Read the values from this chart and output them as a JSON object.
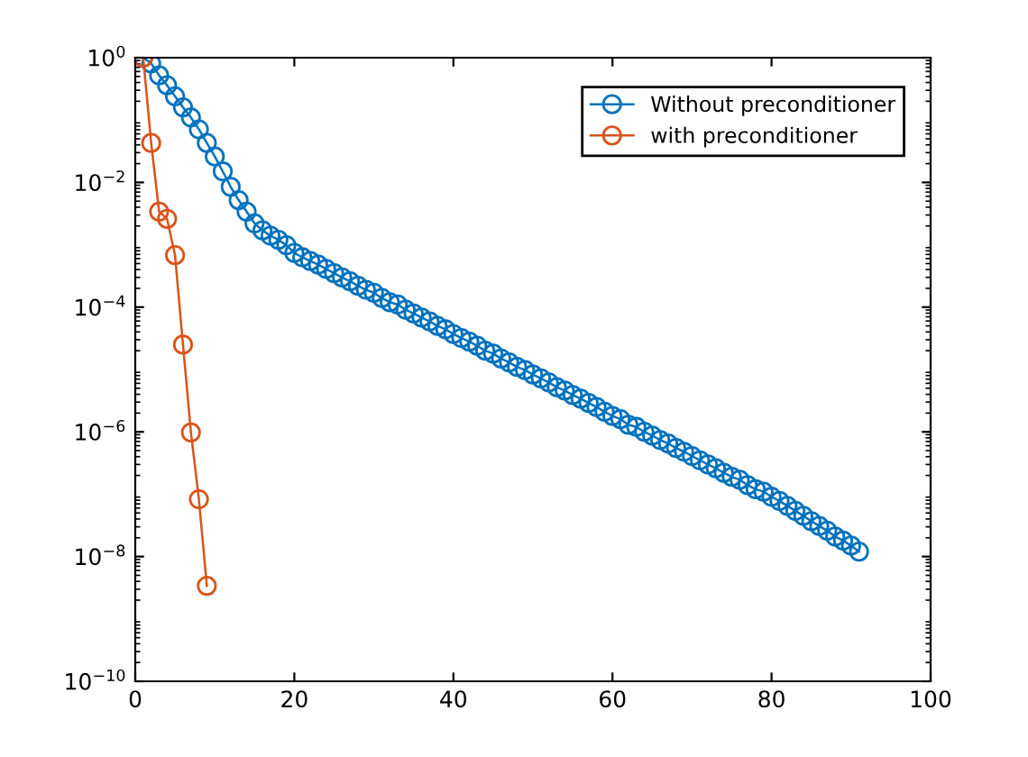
{
  "chart_data": {
    "type": "line",
    "log": "y",
    "marker": "circle",
    "legend": "top right",
    "grid": false,
    "xlim": [
      0,
      100
    ],
    "xticks": [
      0,
      20,
      40,
      60,
      80,
      100
    ],
    "ylim": [
      1e-10,
      1
    ],
    "yticks": [
      {
        "value": 1e-10,
        "label": "10$^{−10}$"
      },
      {
        "value": 1e-08,
        "label": "10$^{−8}$"
      },
      {
        "value": 1e-06,
        "label": "10$^{−6}$"
      },
      {
        "value": 0.0001,
        "label": "10$^{−4}$"
      },
      {
        "value": 0.01,
        "label": "10$^{−2}$"
      },
      {
        "value": 1,
        "label": "10$^{0}$"
      }
    ],
    "series": [
      {
        "name": "Without preconditioner",
        "color": "#0072bd",
        "x": [
          1,
          2,
          3,
          4,
          5,
          6,
          7,
          8,
          9,
          10,
          11,
          12,
          13,
          14,
          15,
          16,
          17,
          18,
          19,
          20,
          21,
          22,
          23,
          24,
          25,
          26,
          27,
          28,
          29,
          30,
          31,
          32,
          33,
          34,
          35,
          36,
          37,
          38,
          39,
          40,
          41,
          42,
          43,
          44,
          45,
          46,
          47,
          48,
          49,
          50,
          51,
          52,
          53,
          54,
          55,
          56,
          57,
          58,
          59,
          60,
          61,
          62,
          63,
          64,
          65,
          66,
          67,
          68,
          69,
          70,
          71,
          72,
          73,
          74,
          75,
          76,
          77,
          78,
          79,
          80,
          81,
          82,
          83,
          84,
          85,
          86,
          87,
          88,
          89,
          90,
          91
        ],
        "values": [
          1,
          0.81,
          0.52,
          0.36,
          0.24,
          0.16,
          0.11,
          0.071,
          0.043,
          0.026,
          0.015,
          0.0085,
          0.0052,
          0.0034,
          0.0022,
          0.0017,
          0.0014,
          0.0012,
          0.00098,
          0.00074,
          0.00063,
          0.00055,
          0.00048,
          0.00041,
          0.00035,
          0.0003,
          0.00026,
          0.00022,
          0.00019,
          0.00017,
          0.00014,
          0.00012,
          0.00011,
          9.1e-05,
          7.9e-05,
          6.8e-05,
          5.9e-05,
          5e-05,
          4.4e-05,
          3.7e-05,
          3.2e-05,
          2.8e-05,
          2.4e-05,
          2e-05,
          1.8e-05,
          1.5e-05,
          1.3e-05,
          1.1e-05,
          9.8e-06,
          8.3e-06,
          7.2e-06,
          6.2e-06,
          5.2e-06,
          4.6e-06,
          3.9e-06,
          3.4e-06,
          2.9e-06,
          2.5e-06,
          2.1e-06,
          1.8e-06,
          1.6e-06,
          1.3e-06,
          1.2e-06,
          1e-06,
          8.7e-07,
          7.4e-07,
          6.5e-07,
          5.5e-07,
          4.8e-07,
          4.1e-07,
          3.5e-07,
          3e-07,
          2.6e-07,
          2.2e-07,
          1.9e-07,
          1.7e-07,
          1.4e-07,
          1.2e-07,
          1.1e-07,
          9.1e-08,
          7.8e-08,
          6.5e-08,
          5.4e-08,
          4.5e-08,
          3.7e-08,
          3.1e-08,
          2.6e-08,
          2.1e-08,
          1.8e-08,
          1.5e-08,
          1.2e-08
        ]
      },
      {
        "name": "with preconditioner",
        "color": "#d95319",
        "x": [
          1,
          2,
          3,
          4,
          5,
          6,
          7,
          8,
          9
        ],
        "values": [
          1,
          0.043,
          0.0034,
          0.0026,
          0.00068,
          2.5e-05,
          9.8e-07,
          8.3e-08,
          3.4e-09
        ]
      }
    ]
  }
}
